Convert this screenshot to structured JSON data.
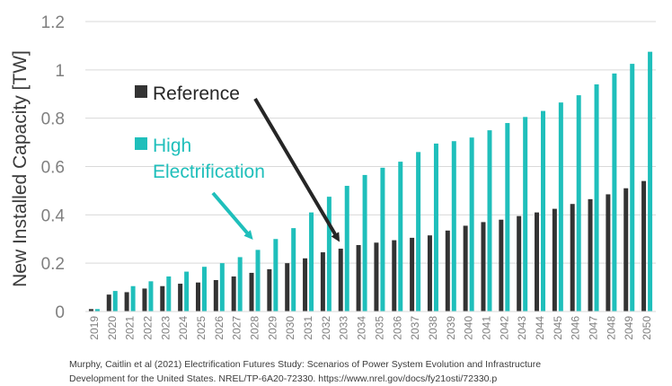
{
  "chart_data": {
    "type": "bar",
    "title": "",
    "xlabel": "",
    "ylabel": "New Installed Capacity [TW]",
    "ylim": [
      0,
      1.2
    ],
    "yticks": [
      "0",
      "0.2",
      "0.4",
      "0.6",
      "0.8",
      "1",
      "1.2"
    ],
    "grid": true,
    "categories": [
      "2019",
      "2020",
      "2021",
      "2022",
      "2023",
      "2024",
      "2025",
      "2026",
      "2027",
      "2028",
      "2029",
      "2030",
      "2031",
      "2032",
      "2033",
      "2034",
      "2035",
      "2036",
      "2037",
      "2038",
      "2039",
      "2040",
      "2041",
      "2042",
      "2043",
      "2044",
      "2045",
      "2046",
      "2047",
      "2048",
      "2049",
      "2050"
    ],
    "series": [
      {
        "name": "Reference",
        "color": "#333333",
        "values": [
          0.01,
          0.07,
          0.08,
          0.095,
          0.105,
          0.115,
          0.12,
          0.13,
          0.145,
          0.16,
          0.175,
          0.2,
          0.22,
          0.245,
          0.26,
          0.275,
          0.285,
          0.295,
          0.305,
          0.315,
          0.335,
          0.355,
          0.37,
          0.38,
          0.395,
          0.41,
          0.425,
          0.445,
          0.465,
          0.485,
          0.51,
          0.54
        ]
      },
      {
        "name": "High Electrification",
        "color": "#1fbfbb",
        "values": [
          0.01,
          0.085,
          0.105,
          0.125,
          0.145,
          0.165,
          0.185,
          0.2,
          0.225,
          0.255,
          0.3,
          0.345,
          0.41,
          0.475,
          0.52,
          0.565,
          0.595,
          0.62,
          0.66,
          0.695,
          0.705,
          0.72,
          0.75,
          0.78,
          0.805,
          0.83,
          0.865,
          0.895,
          0.94,
          0.985,
          1.025,
          1.075
        ]
      }
    ],
    "legend": {
      "reference_label": "Reference",
      "high_label_line1": "High",
      "high_label_line2": "Electrification"
    }
  },
  "citation": {
    "line1": "Murphy, Caitlin et al (2021) Electrification Futures Study: Scenarios of Power System Evolution and Infrastructure",
    "line2": "Development for the United States. NREL/TP-6A20-72330. https://www.nrel.gov/docs/fy21osti/72330.p"
  }
}
